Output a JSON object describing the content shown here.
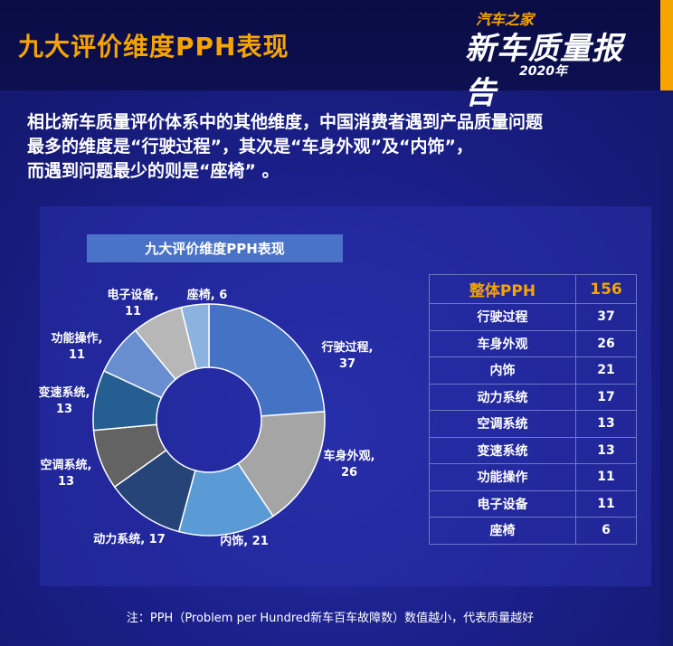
{
  "header": {
    "title": "九大评价维度PPH表现"
  },
  "logo": {
    "line1": "汽车之家",
    "line2": "新车质量报告",
    "line3": "2020年"
  },
  "intro": {
    "lines": [
      "相比新车质量评价体系中的其他维度，中国消费者遇到产品质量问题",
      "最多的维度是“行驶过程”，其次是“车身外观”及“内饰”，",
      "而遇到问题最少的则是“座椅” 。"
    ]
  },
  "colors": {
    "accent": "#f5a400",
    "background": "#14186e"
  },
  "chart_data": {
    "type": "pie",
    "title": "九大评价维度PPH表现",
    "labels": [
      "行驶过程",
      "车身外观",
      "内饰",
      "动力系统",
      "空调系统",
      "变速系统",
      "功能操作",
      "电子设备",
      "座椅"
    ],
    "values": [
      37,
      26,
      21,
      17,
      13,
      13,
      11,
      11,
      6
    ],
    "colors": [
      "#4472c4",
      "#a5a5a5",
      "#5b9bd5",
      "#264478",
      "#636363",
      "#255e91",
      "#698ed0",
      "#b7b7b7",
      "#8cb3e0"
    ],
    "data_labels": [
      [
        "行驶过程,",
        "37"
      ],
      [
        "车身外观,",
        "26"
      ],
      [
        "内饰, 21"
      ],
      [
        "动力系统, 17"
      ],
      [
        "空调系统,",
        "13"
      ],
      [
        "变速系统,",
        "13"
      ],
      [
        "功能操作,",
        "11"
      ],
      [
        "电子设备,",
        "11"
      ],
      [
        "座椅, 6"
      ]
    ]
  },
  "table": {
    "header": {
      "label": "整体PPH",
      "value": "156"
    },
    "rows": [
      {
        "label": "行驶过程",
        "value": "37"
      },
      {
        "label": "车身外观",
        "value": "26"
      },
      {
        "label": "内饰",
        "value": "21"
      },
      {
        "label": "动力系统",
        "value": "17"
      },
      {
        "label": "空调系统",
        "value": "13"
      },
      {
        "label": "变速系统",
        "value": "13"
      },
      {
        "label": "功能操作",
        "value": "11"
      },
      {
        "label": "电子设备",
        "value": "11"
      },
      {
        "label": "座椅",
        "value": "6"
      }
    ]
  },
  "note": "注：PPH（Problem per Hundred新车百车故障数）数值越小，代表质量越好"
}
